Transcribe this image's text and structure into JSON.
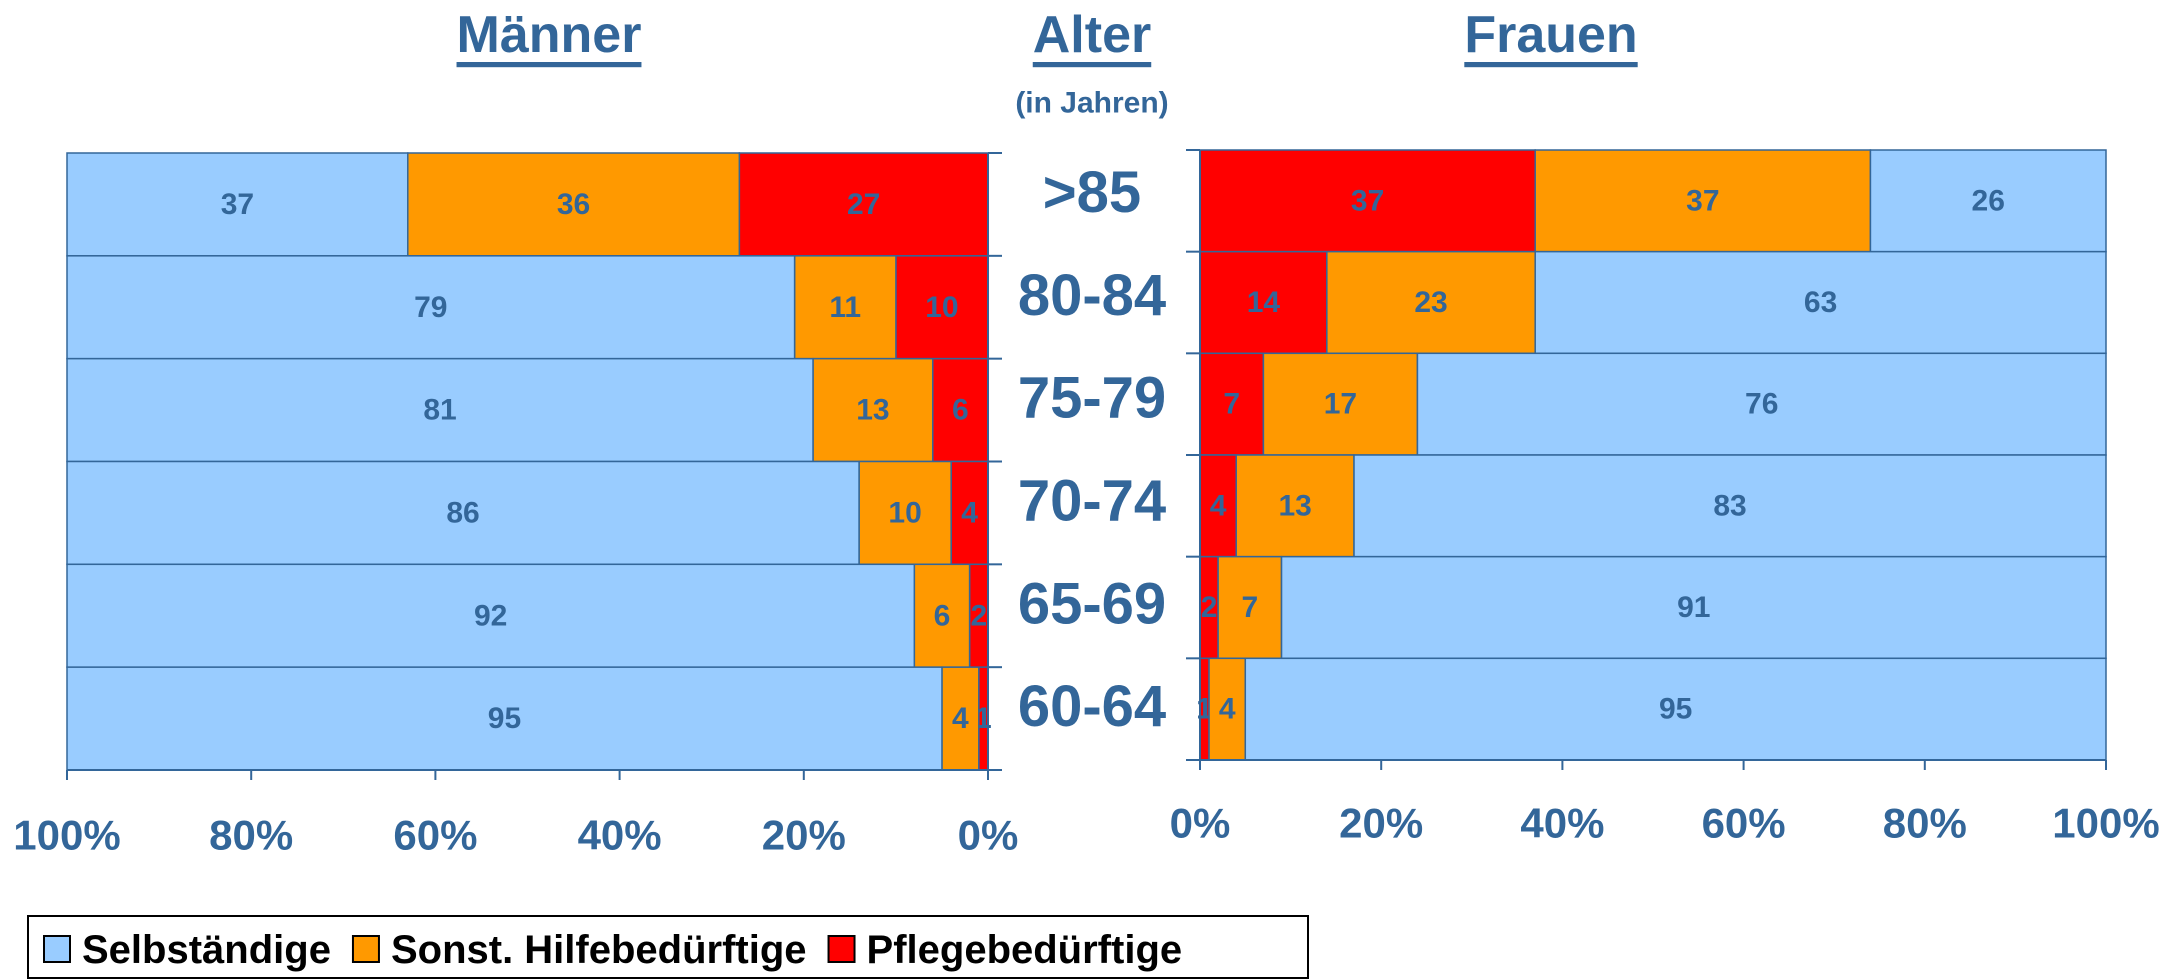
{
  "age_header": {
    "title": "Alter",
    "subtitle": "(in Jahren)"
  },
  "chart_data": [
    {
      "type": "bar",
      "orientation": "horizontal",
      "stacked": true,
      "title": "Männer",
      "categories": [
        ">85",
        "80-84",
        "75-79",
        "70-74",
        "65-69",
        "60-64"
      ],
      "series": [
        {
          "name": "Selbständige",
          "color": "#99ccff",
          "values": [
            37,
            79,
            81,
            86,
            92,
            95
          ]
        },
        {
          "name": "Sonst. Hilfebedürftige",
          "color": "#ff9900",
          "values": [
            36,
            11,
            13,
            10,
            6,
            4
          ]
        },
        {
          "name": "Pflegebedürftige",
          "color": "#ff0000",
          "values": [
            27,
            10,
            6,
            4,
            2,
            1
          ]
        }
      ],
      "xlim": [
        100,
        0
      ],
      "xticks": [
        {
          "value": 100,
          "label": "100%"
        },
        {
          "value": 80,
          "label": "80%"
        },
        {
          "value": 60,
          "label": "60%"
        },
        {
          "value": 40,
          "label": "40%"
        },
        {
          "value": 20,
          "label": "20%"
        },
        {
          "value": 0,
          "label": "0%"
        }
      ]
    },
    {
      "type": "bar",
      "orientation": "horizontal",
      "stacked": true,
      "title": "Frauen",
      "series": [
        {
          "color": "#ff0000",
          "values": [
            37,
            14,
            7,
            4,
            2,
            1
          ]
        },
        {
          "color": "#ff9900",
          "values": [
            37,
            23,
            17,
            13,
            7,
            4
          ]
        },
        {
          "color": "#99ccff",
          "values": [
            26,
            63,
            76,
            83,
            91,
            95
          ]
        }
      ],
      "xlim": [
        0,
        100
      ],
      "xticks": [
        {
          "value": 0,
          "label": "0%"
        },
        {
          "value": 20,
          "label": "20%"
        },
        {
          "value": 40,
          "label": "40%"
        },
        {
          "value": 60,
          "label": "60%"
        },
        {
          "value": 80,
          "label": "80%"
        },
        {
          "value": 100,
          "label": "100%"
        }
      ]
    }
  ]
}
